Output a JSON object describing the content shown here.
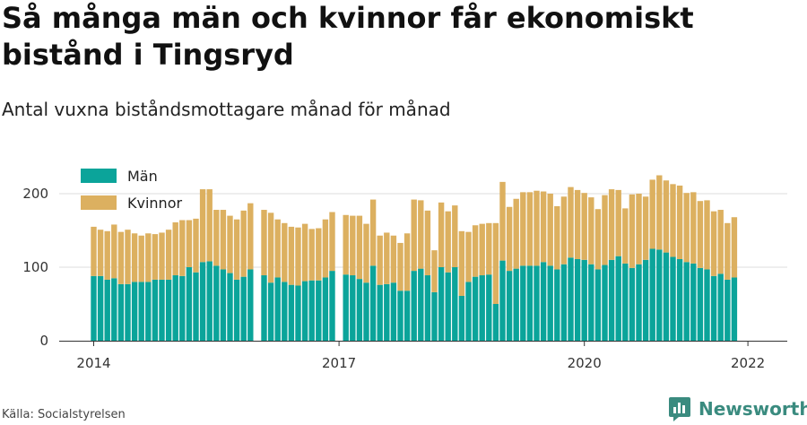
{
  "title": "Så många män och kvinnor får ekonomiskt bistånd i Tingsryd",
  "subtitle": "Antal vuxna biståndsmottagare månad för månad",
  "source": "Källa: Socialstyrelsen",
  "brand": {
    "name": "Newsworthy",
    "logo_icon": "newsworthy-chart-bubble-icon"
  },
  "colors": {
    "men": "#0ba49a",
    "women": "#dcb060",
    "grid": "#dddddd",
    "axis": "#333333"
  },
  "chart_data": {
    "type": "bar",
    "stacked": true,
    "legend": [
      "Män",
      "Kvinnor"
    ],
    "legend_position": "top-left",
    "grid": true,
    "ylim": [
      0,
      230
    ],
    "yticks": [
      0,
      100,
      200
    ],
    "ytick_labels": [
      "0",
      "100",
      "200"
    ],
    "x_start": "2014-01",
    "xticks": [
      "2014-01",
      "2017-01",
      "2020-01",
      "2022-01"
    ],
    "xtick_labels": [
      "2014",
      "2017",
      "2020",
      "2022"
    ],
    "months": [
      "2014-01",
      "2014-02",
      "2014-03",
      "2014-04",
      "2014-05",
      "2014-06",
      "2014-07",
      "2014-08",
      "2014-09",
      "2014-10",
      "2014-11",
      "2014-12",
      "2015-01",
      "2015-02",
      "2015-03",
      "2015-04",
      "2015-05",
      "2015-06",
      "2015-07",
      "2015-08",
      "2015-09",
      "2015-10",
      "2015-11",
      "2015-12",
      "2016-01",
      "2016-02",
      "2016-03",
      "2016-04",
      "2016-05",
      "2016-06",
      "2016-07",
      "2016-08",
      "2016-09",
      "2016-10",
      "2016-11",
      "2016-12",
      "2017-01",
      "2017-02",
      "2017-03",
      "2017-04",
      "2017-05",
      "2017-06",
      "2017-07",
      "2017-08",
      "2017-09",
      "2017-10",
      "2017-11",
      "2017-12",
      "2018-01",
      "2018-02",
      "2018-03",
      "2018-04",
      "2018-05",
      "2018-06",
      "2018-07",
      "2018-08",
      "2018-09",
      "2018-10",
      "2018-11",
      "2018-12",
      "2019-01",
      "2019-02",
      "2019-03",
      "2019-04",
      "2019-05",
      "2019-06",
      "2019-07",
      "2019-08",
      "2019-09",
      "2019-10",
      "2019-11",
      "2019-12",
      "2020-01",
      "2020-02",
      "2020-03",
      "2020-04",
      "2020-05",
      "2020-06",
      "2020-07",
      "2020-08",
      "2020-09",
      "2020-10",
      "2020-11",
      "2020-12",
      "2021-01",
      "2021-02",
      "2021-03",
      "2021-04",
      "2021-05",
      "2021-06",
      "2021-07",
      "2021-08",
      "2021-09",
      "2021-10",
      "2021-11",
      "2021-12",
      "2022-01"
    ],
    "series": [
      {
        "name": "Män",
        "values": [
          88,
          88,
          83,
          85,
          77,
          77,
          80,
          80,
          80,
          83,
          83,
          83,
          89,
          88,
          100,
          93,
          107,
          108,
          102,
          97,
          92,
          83,
          87,
          97,
          null,
          89,
          79,
          86,
          80,
          76,
          75,
          81,
          82,
          82,
          86,
          95,
          null,
          90,
          89,
          84,
          79,
          102,
          76,
          77,
          79,
          68,
          68,
          95,
          98,
          89,
          66,
          100,
          93,
          100,
          61,
          80,
          87,
          89,
          90,
          50,
          109,
          95,
          98,
          102,
          102,
          102,
          107,
          102,
          97,
          104,
          113,
          111,
          110,
          104,
          97,
          103,
          110,
          115,
          105,
          99,
          104,
          110,
          125,
          124,
          120,
          114,
          111,
          107,
          105,
          99,
          97,
          88,
          91,
          83,
          86
        ]
      },
      {
        "name": "Kvinnor",
        "values": [
          67,
          63,
          66,
          73,
          71,
          74,
          66,
          63,
          66,
          62,
          64,
          68,
          72,
          76,
          64,
          73,
          99,
          98,
          76,
          81,
          78,
          82,
          90,
          90,
          null,
          89,
          95,
          79,
          80,
          79,
          79,
          78,
          70,
          71,
          79,
          80,
          null,
          81,
          81,
          86,
          80,
          90,
          67,
          70,
          64,
          65,
          78,
          97,
          93,
          88,
          57,
          88,
          83,
          84,
          88,
          68,
          70,
          70,
          70,
          110,
          107,
          87,
          95,
          100,
          100,
          102,
          96,
          98,
          86,
          92,
          96,
          94,
          91,
          91,
          82,
          95,
          96,
          90,
          75,
          100,
          96,
          86,
          94,
          101,
          98,
          99,
          100,
          94,
          97,
          91,
          94,
          88,
          87,
          77,
          82
        ]
      }
    ]
  }
}
